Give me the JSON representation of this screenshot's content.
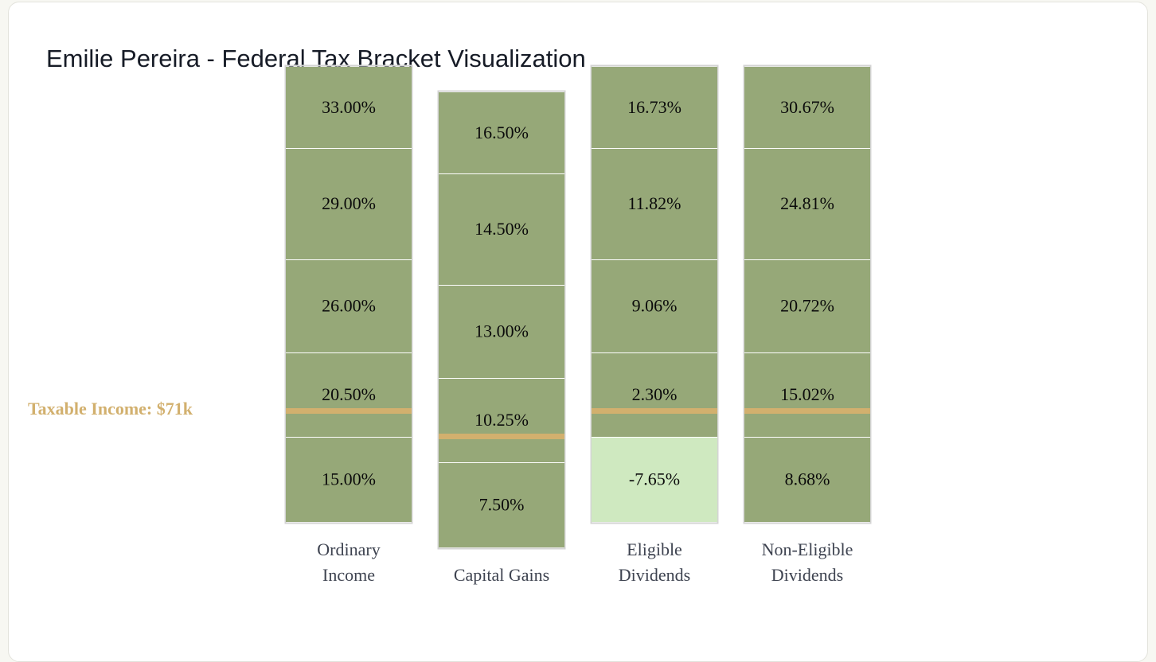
{
  "title": "Emilie Pereira - Federal Tax Bracket Visualization",
  "colors": {
    "positive_segment": "#96a878",
    "negative_segment": "#cfe9c0",
    "segment_border": "#ffffff",
    "column_border": "#d4d4d4",
    "income_marker": "#d2b06e"
  },
  "chart_data": {
    "type": "bar",
    "subtype": "stacked-bracket-columns",
    "title": "Emilie Pereira - Federal Tax Bracket Visualization",
    "taxable_income_label": "Taxable Income: $71k",
    "columns": [
      {
        "name": "Ordinary Income",
        "label_lines": [
          "Ordinary",
          "Income"
        ],
        "segments": [
          {
            "rate": 15.0,
            "label": "15.00%"
          },
          {
            "rate": 20.5,
            "label": "20.50%"
          },
          {
            "rate": 26.0,
            "label": "26.00%"
          },
          {
            "rate": 29.0,
            "label": "29.00%"
          },
          {
            "rate": 33.0,
            "label": "33.00%"
          }
        ]
      },
      {
        "name": "Capital Gains",
        "label_lines": [
          "Capital Gains"
        ],
        "segments": [
          {
            "rate": 7.5,
            "label": "7.50%"
          },
          {
            "rate": 10.25,
            "label": "10.25%"
          },
          {
            "rate": 13.0,
            "label": "13.00%"
          },
          {
            "rate": 14.5,
            "label": "14.50%"
          },
          {
            "rate": 16.5,
            "label": "16.50%"
          }
        ]
      },
      {
        "name": "Eligible Dividends",
        "label_lines": [
          "Eligible",
          "Dividends"
        ],
        "segments": [
          {
            "rate": -7.65,
            "label": "-7.65%"
          },
          {
            "rate": 2.3,
            "label": "2.30%"
          },
          {
            "rate": 9.06,
            "label": "9.06%"
          },
          {
            "rate": 11.82,
            "label": "11.82%"
          },
          {
            "rate": 16.73,
            "label": "16.73%"
          }
        ]
      },
      {
        "name": "Non-Eligible Dividends",
        "label_lines": [
          "Non-Eligible",
          "Dividends"
        ],
        "segments": [
          {
            "rate": 8.68,
            "label": "8.68%"
          },
          {
            "rate": 15.02,
            "label": "15.02%"
          },
          {
            "rate": 20.72,
            "label": "20.72%"
          },
          {
            "rate": 24.81,
            "label": "24.81%"
          },
          {
            "rate": 30.67,
            "label": "30.67%"
          }
        ]
      }
    ]
  }
}
